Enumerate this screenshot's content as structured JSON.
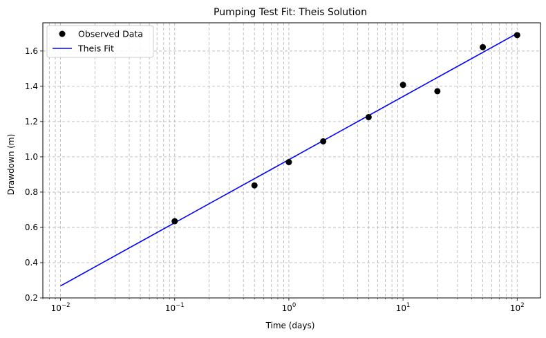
{
  "chart_data": {
    "type": "scatter",
    "title": "Pumping Test Fit: Theis Solution",
    "xlabel": "Time (days)",
    "ylabel": "Drawdown (m)",
    "xscale": "log",
    "xlim": [
      0.007,
      160
    ],
    "ylim": [
      0.2,
      1.76
    ],
    "yticks": [
      0.2,
      0.4,
      0.6,
      0.8,
      1.0,
      1.2,
      1.4,
      1.6
    ],
    "ytick_labels": [
      "0.2",
      "0.4",
      "0.6",
      "0.8",
      "1.0",
      "1.2",
      "1.4",
      "1.6"
    ],
    "xticks": [
      {
        "value": 0.01,
        "base": "10",
        "exp": "−2"
      },
      {
        "value": 0.1,
        "base": "10",
        "exp": "−1"
      },
      {
        "value": 1,
        "base": "10",
        "exp": "0"
      },
      {
        "value": 10,
        "base": "10",
        "exp": "1"
      },
      {
        "value": 100,
        "base": "10",
        "exp": "2"
      }
    ],
    "grid": true,
    "legend_position": "top-left",
    "series": [
      {
        "name": "Observed Data",
        "kind": "scatter",
        "color": "#000000",
        "x": [
          0.1,
          0.5,
          1,
          2,
          5,
          10,
          20,
          50,
          100
        ],
        "y": [
          0.635,
          0.838,
          0.97,
          1.088,
          1.225,
          1.408,
          1.372,
          1.622,
          1.69
        ]
      },
      {
        "name": "Theis Fit",
        "kind": "line",
        "color": "#0000ff",
        "x": [
          0.01,
          100
        ],
        "y": [
          0.268,
          1.7
        ]
      }
    ]
  }
}
